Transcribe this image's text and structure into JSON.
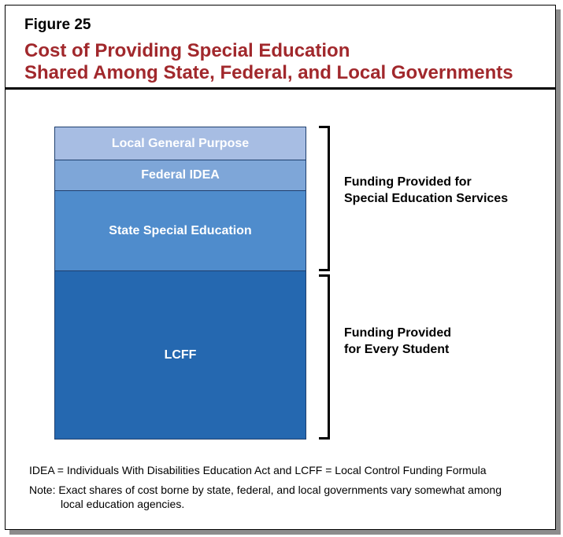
{
  "figure": {
    "label": "Figure 25",
    "title_line1": "Cost of Providing Special Education",
    "title_line2": "Shared Among State, Federal, and Local Governments"
  },
  "stack": [
    {
      "label": "Local General Purpose",
      "color": "#a7bde3"
    },
    {
      "label": "Federal IDEA",
      "color": "#7ea6d8"
    },
    {
      "label": "State Special Education",
      "color": "#4f8ccc"
    },
    {
      "label": "LCFF",
      "color": "#2568b0"
    }
  ],
  "brackets": [
    {
      "line1": "Funding Provided for",
      "line2": "Special Education Services"
    },
    {
      "line1": "Funding Provided",
      "line2": "for Every Student"
    }
  ],
  "notes": {
    "abbreviations": "IDEA = Individuals With Disabilities Education Act and LCFF = Local Control Funding Formula",
    "note_line1": "Note: Exact shares of cost borne by state, federal, and local governments vary somewhat among",
    "note_line2": "local education agencies."
  },
  "colors": {
    "title": "#a1282c"
  }
}
